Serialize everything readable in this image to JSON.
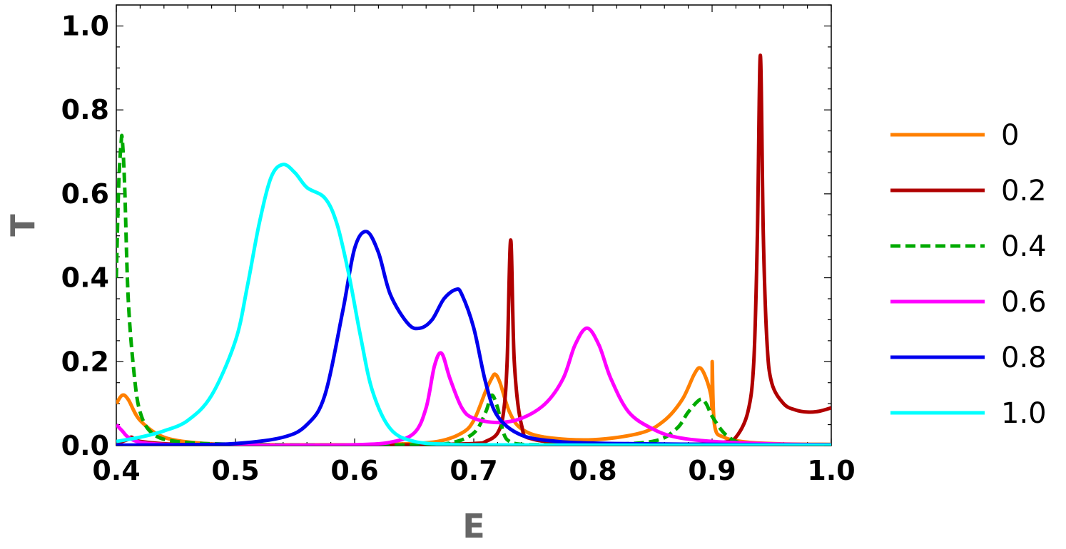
{
  "chart_data": {
    "type": "line",
    "xlabel": "E",
    "ylabel": "T",
    "xlim": [
      0.4,
      1.0
    ],
    "ylim": [
      0.0,
      1.05
    ],
    "xticks": [
      "0.4",
      "0.5",
      "0.6",
      "0.7",
      "0.8",
      "0.9",
      "1.0"
    ],
    "yticks": [
      "0.0",
      "0.2",
      "0.4",
      "0.6",
      "0.8",
      "1.0"
    ],
    "legend_position": "right",
    "series": [
      {
        "name": "0",
        "color": "#ff8000",
        "dash": "solid",
        "x": [
          0.4,
          0.405,
          0.41,
          0.42,
          0.44,
          0.47,
          0.5,
          0.55,
          0.6,
          0.64,
          0.67,
          0.69,
          0.7,
          0.71,
          0.715,
          0.718,
          0.722,
          0.73,
          0.74,
          0.76,
          0.8,
          0.84,
          0.86,
          0.875,
          0.885,
          0.89,
          0.895,
          0.899,
          0.9,
          0.9001,
          0.902,
          0.91,
          0.93,
          0.96,
          1.0
        ],
        "y": [
          0.1,
          0.12,
          0.11,
          0.06,
          0.02,
          0.006,
          0.003,
          0.002,
          0.002,
          0.004,
          0.01,
          0.03,
          0.06,
          0.13,
          0.16,
          0.17,
          0.15,
          0.08,
          0.04,
          0.02,
          0.014,
          0.03,
          0.06,
          0.11,
          0.17,
          0.185,
          0.16,
          0.12,
          0.09,
          0.2,
          0.05,
          0.02,
          0.008,
          0.004,
          0.003
        ]
      },
      {
        "name": "0.2",
        "color": "#b00000",
        "dash": "solid",
        "x": [
          0.4,
          0.41,
          0.413,
          0.42,
          0.45,
          0.5,
          0.6,
          0.65,
          0.7,
          0.71,
          0.72,
          0.725,
          0.728,
          0.731,
          0.734,
          0.74,
          0.75,
          0.8,
          0.85,
          0.9,
          0.91,
          0.92,
          0.93,
          0.935,
          0.938,
          0.9405,
          0.943,
          0.946,
          0.95,
          0.96,
          0.97,
          0.98,
          0.99,
          1.0
        ],
        "y": [
          0.005,
          0.015,
          0.02,
          0.01,
          0.003,
          0.001,
          0.001,
          0.002,
          0.005,
          0.01,
          0.03,
          0.08,
          0.2,
          0.49,
          0.2,
          0.05,
          0.015,
          0.003,
          0.003,
          0.004,
          0.008,
          0.02,
          0.08,
          0.2,
          0.5,
          0.93,
          0.5,
          0.25,
          0.15,
          0.1,
          0.085,
          0.08,
          0.082,
          0.09
        ]
      },
      {
        "name": "0.4",
        "color": "#00aa00",
        "dash": "dashed",
        "x": [
          0.4,
          0.402,
          0.404,
          0.405,
          0.407,
          0.41,
          0.415,
          0.42,
          0.43,
          0.45,
          0.5,
          0.6,
          0.65,
          0.68,
          0.7,
          0.71,
          0.715,
          0.72,
          0.725,
          0.73,
          0.74,
          0.76,
          0.8,
          0.85,
          0.87,
          0.88,
          0.89,
          0.895,
          0.9,
          0.91,
          0.92,
          0.93,
          0.95,
          1.0
        ],
        "y": [
          0.4,
          0.62,
          0.72,
          0.73,
          0.62,
          0.35,
          0.17,
          0.08,
          0.03,
          0.01,
          0.003,
          0.001,
          0.002,
          0.006,
          0.03,
          0.08,
          0.12,
          0.09,
          0.03,
          0.01,
          0.003,
          0.002,
          0.002,
          0.01,
          0.04,
          0.08,
          0.11,
          0.1,
          0.07,
          0.03,
          0.01,
          0.004,
          0.002,
          0.001
        ]
      },
      {
        "name": "0.6",
        "color": "#ff00ff",
        "dash": "solid",
        "x": [
          0.4,
          0.405,
          0.41,
          0.42,
          0.44,
          0.48,
          0.55,
          0.6,
          0.63,
          0.65,
          0.66,
          0.667,
          0.673,
          0.68,
          0.69,
          0.7,
          0.72,
          0.74,
          0.76,
          0.775,
          0.785,
          0.795,
          0.805,
          0.815,
          0.83,
          0.85,
          0.87,
          0.9,
          0.95,
          1.0
        ],
        "y": [
          0.05,
          0.035,
          0.02,
          0.008,
          0.003,
          0.001,
          0.001,
          0.002,
          0.008,
          0.03,
          0.09,
          0.19,
          0.22,
          0.16,
          0.09,
          0.065,
          0.055,
          0.065,
          0.1,
          0.16,
          0.24,
          0.28,
          0.24,
          0.16,
          0.08,
          0.04,
          0.02,
          0.01,
          0.004,
          0.002
        ]
      },
      {
        "name": "0.8",
        "color": "#0000ee",
        "dash": "solid",
        "x": [
          0.4,
          0.45,
          0.5,
          0.54,
          0.56,
          0.575,
          0.59,
          0.6,
          0.61,
          0.62,
          0.63,
          0.645,
          0.655,
          0.665,
          0.675,
          0.685,
          0.69,
          0.7,
          0.71,
          0.72,
          0.74,
          0.77,
          0.8,
          0.85,
          0.9,
          0.95,
          1.0
        ],
        "y": [
          0.001,
          0.002,
          0.005,
          0.02,
          0.05,
          0.12,
          0.32,
          0.47,
          0.51,
          0.46,
          0.36,
          0.29,
          0.28,
          0.3,
          0.35,
          0.372,
          0.36,
          0.28,
          0.15,
          0.07,
          0.025,
          0.01,
          0.006,
          0.004,
          0.003,
          0.002,
          0.002
        ]
      },
      {
        "name": "1.0",
        "color": "#00ffff",
        "dash": "solid",
        "x": [
          0.4,
          0.42,
          0.44,
          0.46,
          0.48,
          0.5,
          0.51,
          0.52,
          0.53,
          0.54,
          0.55,
          0.56,
          0.575,
          0.585,
          0.595,
          0.605,
          0.615,
          0.63,
          0.65,
          0.68,
          0.7,
          0.8,
          0.9,
          1.0
        ],
        "y": [
          0.01,
          0.02,
          0.035,
          0.06,
          0.12,
          0.25,
          0.38,
          0.53,
          0.64,
          0.67,
          0.65,
          0.615,
          0.59,
          0.53,
          0.41,
          0.26,
          0.13,
          0.04,
          0.01,
          0.003,
          0.002,
          0.001,
          0.001,
          0.001
        ]
      }
    ]
  }
}
